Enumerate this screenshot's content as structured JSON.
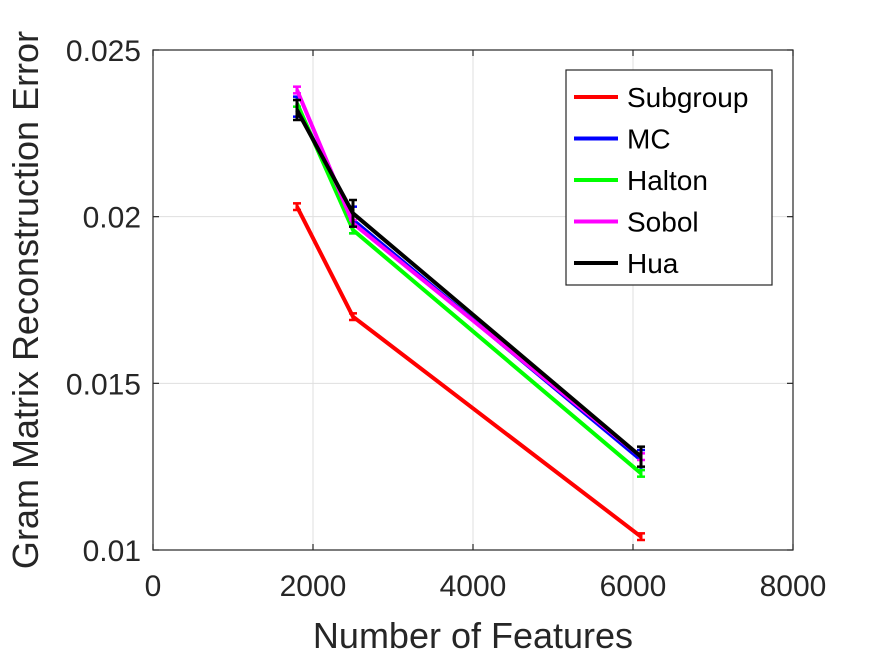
{
  "chart_data": {
    "type": "line",
    "title": "",
    "xlabel": "Number of Features",
    "ylabel": "Gram Matrix Reconstruction Error",
    "xlim": [
      0,
      8000
    ],
    "ylim": [
      0.01,
      0.025
    ],
    "x_ticks": [
      0,
      2000,
      4000,
      6000,
      8000
    ],
    "x_tick_labels": [
      "0",
      "2000",
      "4000",
      "6000",
      "8000"
    ],
    "y_ticks": [
      0.01,
      0.015,
      0.02,
      0.025
    ],
    "y_tick_labels": [
      "0.01",
      "0.015",
      "0.02",
      "0.025"
    ],
    "grid": true,
    "legend_position": "top-right",
    "x": [
      1800,
      2500,
      6100
    ],
    "series": [
      {
        "name": "Subgroup",
        "color": "#ff0000",
        "values": [
          0.0203,
          0.017,
          0.0104
        ],
        "errors": [
          0.0001,
          0.0001,
          0.0001
        ]
      },
      {
        "name": "MC",
        "color": "#0000ff",
        "values": [
          0.0233,
          0.0199,
          0.0127
        ],
        "errors": [
          0.0003,
          0.0004,
          0.0003
        ]
      },
      {
        "name": "Halton",
        "color": "#00ff00",
        "values": [
          0.0234,
          0.0196,
          0.0123
        ],
        "errors": [
          0.0001,
          0.0001,
          0.0001
        ]
      },
      {
        "name": "Sobol",
        "color": "#ff00ff",
        "values": [
          0.0238,
          0.0198,
          0.0128
        ],
        "errors": [
          0.0001,
          0.0001,
          0.0001
        ]
      },
      {
        "name": "Hua",
        "color": "#000000",
        "values": [
          0.0232,
          0.0201,
          0.0128
        ],
        "errors": [
          0.0003,
          0.0004,
          0.0003
        ]
      }
    ]
  }
}
